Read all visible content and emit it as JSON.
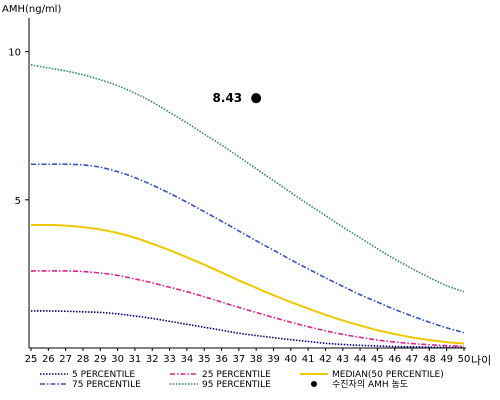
{
  "chart_data": {
    "type": "line",
    "ylabel": "AMH(ng/ml)",
    "xlabel": "나이",
    "x": [
      25,
      26,
      27,
      28,
      29,
      30,
      31,
      32,
      33,
      34,
      35,
      36,
      37,
      38,
      39,
      40,
      41,
      42,
      43,
      44,
      45,
      46,
      47,
      48,
      49,
      50
    ],
    "xlim": [
      25,
      50
    ],
    "ylim": [
      0,
      11
    ],
    "yticks": [
      5,
      10
    ],
    "grid": false,
    "legend_position": "bottom",
    "series": [
      {
        "name": "5 PERCENTILE",
        "color": "#000080",
        "dash": "dotted",
        "values": [
          1.25,
          1.25,
          1.24,
          1.22,
          1.2,
          1.15,
          1.08,
          1.0,
          0.9,
          0.8,
          0.7,
          0.6,
          0.5,
          0.42,
          0.35,
          0.28,
          0.22,
          0.16,
          0.12,
          0.09,
          0.07,
          0.05,
          0.04,
          0.03,
          0.02,
          0.02
        ]
      },
      {
        "name": "25 PERCENTILE",
        "color": "#e0218a",
        "dash": "dashdot",
        "values": [
          2.6,
          2.6,
          2.6,
          2.58,
          2.53,
          2.45,
          2.33,
          2.2,
          2.05,
          1.9,
          1.73,
          1.55,
          1.37,
          1.2,
          1.03,
          0.87,
          0.72,
          0.58,
          0.46,
          0.36,
          0.27,
          0.2,
          0.15,
          0.11,
          0.08,
          0.06
        ]
      },
      {
        "name": "MEDIAN(50 PERCENTILE)",
        "color": "#f0c800",
        "dash": "solid",
        "values": [
          4.15,
          4.15,
          4.13,
          4.08,
          4.0,
          3.88,
          3.72,
          3.52,
          3.3,
          3.06,
          2.81,
          2.55,
          2.28,
          2.03,
          1.78,
          1.55,
          1.33,
          1.12,
          0.93,
          0.76,
          0.6,
          0.47,
          0.36,
          0.27,
          0.2,
          0.15
        ]
      },
      {
        "name": "75 PERCENTILE",
        "color": "#3050c8",
        "dash": "dashdot",
        "values": [
          6.2,
          6.2,
          6.2,
          6.18,
          6.1,
          5.95,
          5.75,
          5.5,
          5.22,
          4.92,
          4.6,
          4.28,
          3.95,
          3.62,
          3.3,
          2.98,
          2.67,
          2.37,
          2.08,
          1.8,
          1.55,
          1.3,
          1.08,
          0.87,
          0.68,
          0.52
        ]
      },
      {
        "name": "95 PERCENTILE",
        "color": "#2a8a5a",
        "dash": "dotted",
        "values": [
          9.55,
          9.45,
          9.35,
          9.22,
          9.05,
          8.85,
          8.6,
          8.3,
          7.95,
          7.6,
          7.22,
          6.85,
          6.45,
          6.05,
          5.65,
          5.25,
          4.85,
          4.47,
          4.08,
          3.72,
          3.35,
          3.0,
          2.68,
          2.38,
          2.1,
          1.9
        ]
      }
    ],
    "marker": {
      "label": "수진자의 AMH 농도",
      "x": 38,
      "y": 8.43,
      "text": "8.43",
      "color": "#000000"
    }
  }
}
